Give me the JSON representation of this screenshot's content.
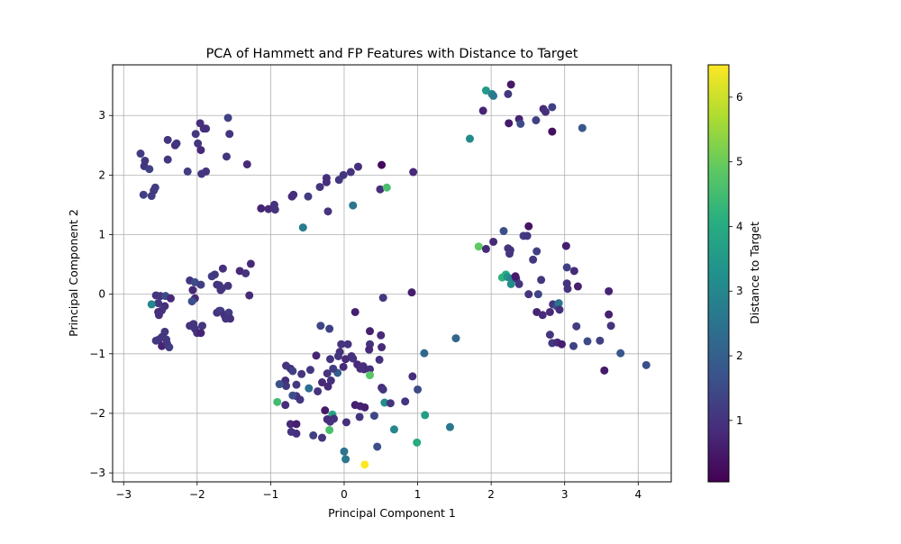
{
  "chart_data": {
    "type": "scatter",
    "title": "PCA of Hammett and FP Features with Distance to Target",
    "xlabel": "Principal Component 1",
    "ylabel": "Principal Component 2",
    "xlim": [
      -3.15,
      4.45
    ],
    "ylim": [
      -3.15,
      3.85
    ],
    "xticks": [
      -3,
      -2,
      -1,
      0,
      1,
      2,
      3,
      4
    ],
    "yticks": [
      -3,
      -2,
      -1,
      0,
      1,
      2,
      3
    ],
    "grid": true,
    "colormap": "viridis",
    "colorbar": {
      "label": "Distance to Target",
      "range": [
        0.05,
        6.5
      ],
      "ticks": [
        1,
        2,
        3,
        4,
        5,
        6
      ]
    },
    "points": [
      [
        -2.77,
        2.36,
        1.2
      ],
      [
        -2.71,
        2.24,
        1.1
      ],
      [
        -2.72,
        2.15,
        1.0
      ],
      [
        -2.65,
        2.1,
        1.3
      ],
      [
        -2.73,
        1.67,
        1.3
      ],
      [
        -2.62,
        1.65,
        1.2
      ],
      [
        -2.59,
        1.74,
        1.1
      ],
      [
        -2.57,
        1.79,
        1.2
      ],
      [
        -2.4,
        2.59,
        1.0
      ],
      [
        -2.3,
        2.5,
        0.9
      ],
      [
        -2.28,
        2.53,
        1.0
      ],
      [
        -2.4,
        2.26,
        1.1
      ],
      [
        -2.13,
        2.06,
        1.2
      ],
      [
        -2.02,
        2.69,
        1.1
      ],
      [
        -1.96,
        2.87,
        0.9
      ],
      [
        -1.99,
        2.53,
        1.0
      ],
      [
        -1.95,
        2.42,
        0.8
      ],
      [
        -1.88,
        2.78,
        1.0
      ],
      [
        -1.91,
        2.78,
        0.9
      ],
      [
        -1.94,
        2.02,
        1.0
      ],
      [
        -1.88,
        2.06,
        1.0
      ],
      [
        -1.58,
        2.96,
        1.3
      ],
      [
        -1.56,
        2.69,
        1.0
      ],
      [
        -1.6,
        2.31,
        1.1
      ],
      [
        -1.32,
        2.18,
        0.8
      ],
      [
        -1.13,
        1.44,
        0.7
      ],
      [
        -1.03,
        1.43,
        0.8
      ],
      [
        -0.95,
        1.5,
        1.0
      ],
      [
        -0.94,
        1.42,
        1.0
      ],
      [
        -0.71,
        1.64,
        0.8
      ],
      [
        -0.69,
        1.67,
        0.9
      ],
      [
        -0.49,
        1.64,
        1.2
      ],
      [
        -0.33,
        1.8,
        1.0
      ],
      [
        -0.24,
        1.95,
        0.9
      ],
      [
        -0.24,
        1.88,
        0.9
      ],
      [
        -0.07,
        1.92,
        1.1
      ],
      [
        -0.01,
        2.0,
        1.0
      ],
      [
        0.09,
        2.05,
        1.0
      ],
      [
        0.19,
        2.14,
        0.9
      ],
      [
        0.51,
        2.17,
        0.2
      ],
      [
        0.94,
        2.05,
        0.8
      ],
      [
        0.49,
        1.76,
        0.9
      ],
      [
        0.58,
        1.79,
        4.6
      ],
      [
        0.12,
        1.49,
        2.6
      ],
      [
        -0.56,
        1.12,
        2.7
      ],
      [
        -0.22,
        1.39,
        1.0
      ],
      [
        1.93,
        3.42,
        3.5
      ],
      [
        2.01,
        3.36,
        2.9
      ],
      [
        2.03,
        3.33,
        2.7
      ],
      [
        1.89,
        3.08,
        0.7
      ],
      [
        2.23,
        3.36,
        1.1
      ],
      [
        2.27,
        3.52,
        0.5
      ],
      [
        2.24,
        2.87,
        0.5
      ],
      [
        2.38,
        2.94,
        0.7
      ],
      [
        2.4,
        2.86,
        1.5
      ],
      [
        2.61,
        2.92,
        1.3
      ],
      [
        2.71,
        3.11,
        0.8
      ],
      [
        2.74,
        3.06,
        0.9
      ],
      [
        2.83,
        3.14,
        1.3
      ],
      [
        2.83,
        2.73,
        0.3
      ],
      [
        3.24,
        2.79,
        1.8
      ],
      [
        1.71,
        2.61,
        3.1
      ],
      [
        -2.56,
        -0.02,
        1.0
      ],
      [
        -2.5,
        -0.03,
        1.0
      ],
      [
        -2.43,
        -0.03,
        1.5
      ],
      [
        -2.53,
        -0.15,
        1.1
      ],
      [
        -2.62,
        -0.17,
        3.0
      ],
      [
        -2.44,
        -0.2,
        0.9
      ],
      [
        -2.48,
        -0.27,
        1.0
      ],
      [
        -2.53,
        -0.3,
        0.8
      ],
      [
        -2.52,
        -0.35,
        0.9
      ],
      [
        -2.36,
        -0.07,
        0.8
      ],
      [
        -2.44,
        -0.63,
        1.1
      ],
      [
        -2.48,
        -0.72,
        1.0
      ],
      [
        -2.52,
        -0.76,
        1.0
      ],
      [
        -2.56,
        -0.78,
        1.1
      ],
      [
        -2.48,
        -0.87,
        0.7
      ],
      [
        -2.41,
        -0.83,
        1.0
      ],
      [
        -2.38,
        -0.89,
        1.2
      ],
      [
        -2.42,
        -0.76,
        1.1
      ],
      [
        -2.1,
        0.23,
        1.1
      ],
      [
        -2.03,
        0.2,
        1.5
      ],
      [
        -2.06,
        0.07,
        0.8
      ],
      [
        -2.03,
        -0.07,
        0.8
      ],
      [
        -2.07,
        -0.12,
        1.6
      ],
      [
        -2.1,
        -0.53,
        1.0
      ],
      [
        -2.05,
        -0.5,
        1.0
      ],
      [
        -2.03,
        -0.58,
        1.0
      ],
      [
        -2.0,
        -0.65,
        0.9
      ],
      [
        -1.93,
        -0.53,
        1.0
      ],
      [
        -1.95,
        -0.65,
        0.7
      ],
      [
        -1.95,
        0.16,
        1.2
      ],
      [
        -1.8,
        0.3,
        1.2
      ],
      [
        -1.76,
        0.33,
        1.1
      ],
      [
        -1.73,
        0.16,
        1.0
      ],
      [
        -1.65,
        0.43,
        0.9
      ],
      [
        -1.7,
        0.15,
        1.0
      ],
      [
        -1.66,
        0.1,
        1.1
      ],
      [
        -1.58,
        0.14,
        1.0
      ],
      [
        -1.68,
        0.07,
        1.0
      ],
      [
        -1.7,
        -0.28,
        1.0
      ],
      [
        -1.73,
        -0.31,
        1.0
      ],
      [
        -1.68,
        -0.28,
        1.2
      ],
      [
        -1.63,
        -0.35,
        0.9
      ],
      [
        -1.57,
        -0.31,
        1.2
      ],
      [
        -1.55,
        -0.41,
        0.9
      ],
      [
        -1.61,
        -0.41,
        1.0
      ],
      [
        -1.42,
        0.39,
        0.8
      ],
      [
        -1.34,
        0.35,
        1.0
      ],
      [
        -1.27,
        0.51,
        0.8
      ],
      [
        -1.29,
        -0.02,
        0.8
      ],
      [
        2.17,
        1.06,
        1.6
      ],
      [
        2.23,
        0.77,
        1.1
      ],
      [
        2.26,
        0.74,
        0.9
      ],
      [
        2.25,
        0.68,
        1.0
      ],
      [
        1.83,
        0.8,
        4.9
      ],
      [
        2.03,
        0.88,
        0.8
      ],
      [
        2.2,
        0.33,
        4.0
      ],
      [
        2.15,
        0.28,
        4.2
      ],
      [
        2.22,
        0.29,
        3.3
      ],
      [
        2.27,
        0.26,
        2.9
      ],
      [
        2.34,
        0.26,
        1.0
      ],
      [
        2.38,
        0.17,
        1.0
      ],
      [
        2.27,
        0.17,
        3.2
      ],
      [
        2.33,
        0.3,
        0.5
      ],
      [
        1.93,
        0.76,
        0.8
      ],
      [
        2.44,
        0.98,
        1.2
      ],
      [
        2.49,
        0.98,
        1.1
      ],
      [
        2.51,
        1.14,
        0.4
      ],
      [
        2.57,
        0.58,
        1.1
      ],
      [
        2.62,
        0.72,
        1.3
      ],
      [
        2.68,
        0.24,
        1.1
      ],
      [
        2.51,
        0.0,
        1.0
      ],
      [
        2.64,
        0.0,
        1.4
      ],
      [
        2.62,
        -0.3,
        0.7
      ],
      [
        2.7,
        -0.35,
        0.8
      ],
      [
        2.8,
        -0.3,
        0.8
      ],
      [
        2.84,
        -0.17,
        1.0
      ],
      [
        2.89,
        -0.2,
        1.5
      ],
      [
        2.92,
        -0.15,
        2.5
      ],
      [
        2.93,
        -0.26,
        0.9
      ],
      [
        2.8,
        -0.68,
        1.0
      ],
      [
        2.83,
        -0.82,
        1.1
      ],
      [
        2.9,
        -0.81,
        0.8
      ],
      [
        2.96,
        -0.84,
        0.6
      ],
      [
        3.02,
        0.81,
        0.6
      ],
      [
        3.03,
        0.45,
        1.3
      ],
      [
        3.03,
        0.18,
        1.0
      ],
      [
        3.04,
        0.09,
        1.0
      ],
      [
        3.13,
        0.39,
        0.8
      ],
      [
        3.18,
        0.13,
        0.6
      ],
      [
        3.12,
        -0.87,
        1.3
      ],
      [
        3.16,
        -0.54,
        1.2
      ],
      [
        3.31,
        -0.79,
        1.5
      ],
      [
        3.48,
        -0.78,
        1.3
      ],
      [
        3.6,
        0.05,
        0.7
      ],
      [
        3.6,
        -0.34,
        0.6
      ],
      [
        3.63,
        -0.53,
        1.0
      ],
      [
        3.54,
        -1.28,
        0.5
      ],
      [
        3.76,
        -0.99,
        1.8
      ],
      [
        4.11,
        -1.19,
        1.6
      ],
      [
        -0.32,
        -0.53,
        1.4
      ],
      [
        -0.2,
        -0.58,
        1.3
      ],
      [
        -0.04,
        -0.84,
        1.0
      ],
      [
        0.05,
        -0.84,
        1.0
      ],
      [
        0.15,
        -0.3,
        0.6
      ],
      [
        0.53,
        -0.06,
        1.1
      ],
      [
        0.5,
        -0.69,
        0.8
      ],
      [
        0.35,
        -0.62,
        0.6
      ],
      [
        0.35,
        -0.84,
        1.0
      ],
      [
        0.34,
        -0.93,
        0.8
      ],
      [
        0.51,
        -0.89,
        0.8
      ],
      [
        0.92,
        0.03,
        0.6
      ],
      [
        -0.06,
        -0.97,
        0.9
      ],
      [
        -0.08,
        -1.04,
        1.0
      ],
      [
        -0.38,
        -1.03,
        0.7
      ],
      [
        -0.19,
        -1.09,
        1.0
      ],
      [
        0.02,
        -1.09,
        0.8
      ],
      [
        0.1,
        -1.04,
        0.9
      ],
      [
        0.12,
        -1.08,
        1.0
      ],
      [
        0.18,
        -1.18,
        0.8
      ],
      [
        0.26,
        -1.21,
        0.9
      ],
      [
        0.27,
        -1.26,
        0.8
      ],
      [
        0.35,
        -1.26,
        0.9
      ],
      [
        0.35,
        -1.36,
        4.8
      ],
      [
        0.22,
        -1.25,
        0.9
      ],
      [
        0.48,
        -1.1,
        0.9
      ],
      [
        -0.09,
        -1.32,
        2.0
      ],
      [
        -0.01,
        -1.22,
        0.8
      ],
      [
        -0.15,
        -1.25,
        1.2
      ],
      [
        -0.23,
        -1.33,
        1.0
      ],
      [
        -0.18,
        -1.45,
        0.9
      ],
      [
        -0.22,
        -1.55,
        0.8
      ],
      [
        -0.3,
        -1.48,
        0.8
      ],
      [
        -0.36,
        -1.63,
        1.0
      ],
      [
        -0.46,
        -1.27,
        1.1
      ],
      [
        -0.48,
        -1.58,
        2.4
      ],
      [
        -0.58,
        -1.34,
        1.0
      ],
      [
        -0.6,
        -1.77,
        1.1
      ],
      [
        -0.65,
        -1.52,
        1.1
      ],
      [
        -0.65,
        -1.71,
        0.9
      ],
      [
        -0.7,
        -1.7,
        1.6
      ],
      [
        -0.73,
        -1.25,
        0.9
      ],
      [
        -0.7,
        -1.29,
        1.3
      ],
      [
        -0.79,
        -1.2,
        1.0
      ],
      [
        -0.8,
        -1.45,
        0.9
      ],
      [
        -0.79,
        -1.54,
        1.1
      ],
      [
        -0.88,
        -1.51,
        1.7
      ],
      [
        -0.8,
        -1.86,
        0.9
      ],
      [
        -0.73,
        -2.18,
        0.8
      ],
      [
        -0.65,
        -2.18,
        0.6
      ],
      [
        -0.72,
        -2.31,
        1.0
      ],
      [
        -0.65,
        -2.34,
        0.9
      ],
      [
        -0.91,
        -1.81,
        4.5
      ],
      [
        -0.42,
        -2.37,
        1.3
      ],
      [
        -0.3,
        -2.41,
        1.0
      ],
      [
        -0.26,
        -1.95,
        0.5
      ],
      [
        -0.16,
        -2.02,
        3.8
      ],
      [
        -0.14,
        -2.09,
        0.9
      ],
      [
        -0.19,
        -2.14,
        1.0
      ],
      [
        -0.2,
        -2.28,
        4.6
      ],
      [
        -0.23,
        -2.1,
        0.9
      ],
      [
        0.15,
        -1.86,
        0.6
      ],
      [
        0.22,
        -1.88,
        0.7
      ],
      [
        0.28,
        -1.9,
        0.6
      ],
      [
        0.21,
        -2.06,
        1.0
      ],
      [
        0.41,
        -2.04,
        1.4
      ],
      [
        0.51,
        -1.57,
        0.8
      ],
      [
        0.53,
        -1.6,
        1.0
      ],
      [
        0.55,
        -1.82,
        3.2
      ],
      [
        0.63,
        -1.83,
        1.0
      ],
      [
        0.83,
        -1.8,
        1.0
      ],
      [
        0.93,
        -1.38,
        0.9
      ],
      [
        1.0,
        -1.6,
        1.5
      ],
      [
        1.09,
        -0.99,
        2.2
      ],
      [
        1.1,
        -2.03,
        3.6
      ],
      [
        0.99,
        -2.49,
        4.0
      ],
      [
        0.68,
        -2.27,
        3.0
      ],
      [
        0.45,
        -2.56,
        1.6
      ],
      [
        0.03,
        -2.15,
        0.9
      ],
      [
        0.0,
        -2.64,
        2.5
      ],
      [
        0.02,
        -2.77,
        2.6
      ],
      [
        0.28,
        -2.86,
        6.5
      ],
      [
        1.44,
        -2.23,
        2.6
      ],
      [
        1.52,
        -0.74,
        2.2
      ]
    ]
  }
}
